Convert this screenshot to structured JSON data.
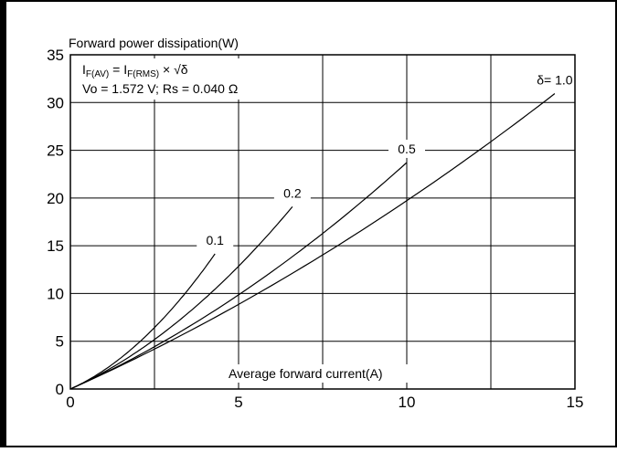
{
  "chart_data": {
    "type": "line",
    "title": "Forward power dissipation(W)",
    "xlabel": "Average forward current(A)",
    "ylabel": "Forward power dissipation(W)",
    "xlim": [
      0,
      15
    ],
    "ylim": [
      0,
      35
    ],
    "x_ticks": [
      "0",
      "5",
      "10",
      "15"
    ],
    "y_ticks": [
      "0",
      "5",
      "10",
      "15",
      "20",
      "25",
      "30",
      "35"
    ],
    "grid": true,
    "annotations": {
      "formula_prefix": "I",
      "formula_sub1": "F(AV)",
      "formula_mid": " = I",
      "formula_sub2": "F(RMS)",
      "formula_suffix": " × √δ",
      "params": "Vo = 1.572 V; Rs = 0.040 Ω"
    },
    "Vo": 1.572,
    "Rs": 0.04,
    "series": [
      {
        "name": "0.1",
        "delta": 0.1,
        "x": [
          0,
          1,
          2,
          3,
          4.3
        ],
        "y": [
          0,
          2.0,
          5.3,
          9.5,
          15.0
        ]
      },
      {
        "name": "0.2",
        "delta": 0.2,
        "x": [
          0,
          1,
          2,
          3,
          4,
          5,
          6.6
        ],
        "y": [
          0,
          1.8,
          4.5,
          7.7,
          10.4,
          13.5,
          18.0
        ]
      },
      {
        "name": "0.5",
        "delta": 0.5,
        "x": [
          0,
          2,
          4,
          6,
          8,
          10
        ],
        "y": [
          0,
          3.8,
          8.0,
          12.5,
          17.9,
          23.5
        ]
      },
      {
        "name": "δ= 1.0",
        "delta": 1.0,
        "x": [
          0,
          2,
          4,
          6,
          8,
          10,
          12,
          14.4
        ],
        "y": [
          0,
          3.3,
          7.0,
          11.0,
          15.2,
          19.8,
          24.5,
          30.8
        ]
      }
    ]
  }
}
